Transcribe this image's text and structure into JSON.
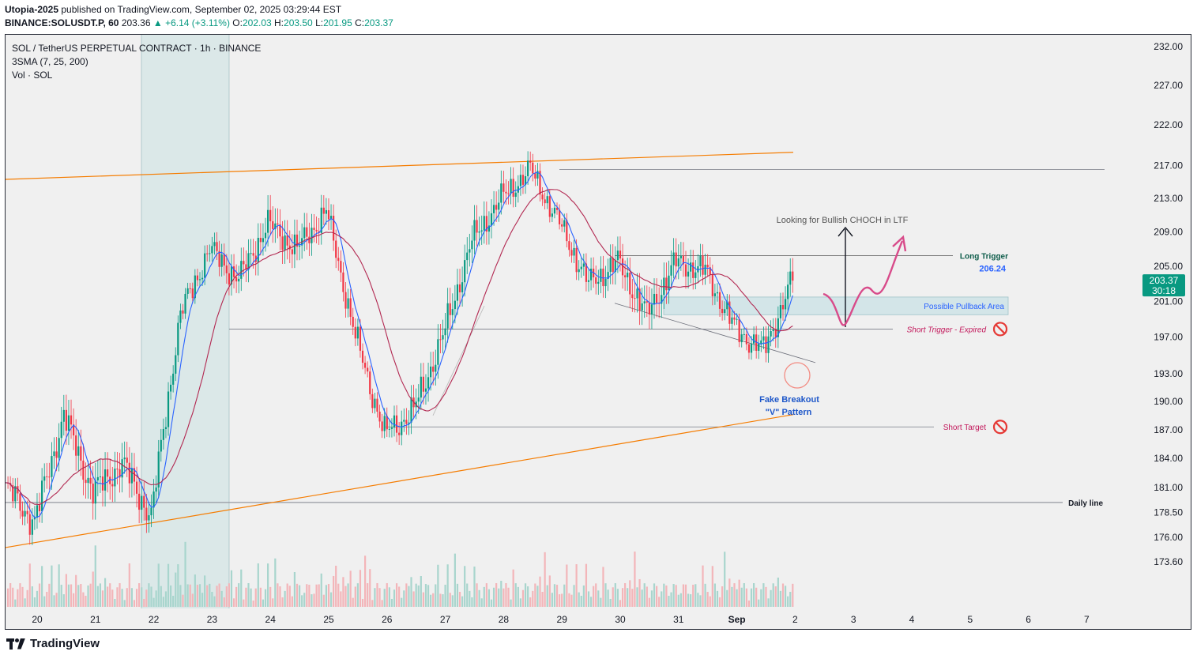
{
  "header": {
    "publisher": "Utopia-2025",
    "published_text": "published on TradingView.com, September 02, 2025 03:29:44 EST",
    "symbol": "BINANCE:SOLUSDT.P, 60",
    "price": "203.36",
    "change": "+6.14 (+3.11%)",
    "o_label": "O:",
    "o": "202.03",
    "h_label": "H:",
    "h": "203.50",
    "l_label": "L:",
    "l": "201.95",
    "c_label": "C:",
    "c": "203.37"
  },
  "legend": {
    "title": "SOL / TetherUS PERPETUAL CONTRACT · 1h · BINANCE",
    "indicator": "3SMA (7, 25, 200)",
    "volume": "Vol · SOL"
  },
  "footer": {
    "brand": "TradingView"
  },
  "colors": {
    "up": "#089981",
    "down": "#f23645",
    "sma_fast": "#2962ff",
    "sma_mid": "#b22851",
    "trendline": "#f57c00",
    "annotation_pink": "#d84b8a",
    "zone": "#d3e5e8",
    "highlight": "#dbe8e8"
  },
  "chart_data": {
    "type": "candlestick",
    "title": "SOL / TetherUS PERPETUAL CONTRACT · 1h · BINANCE",
    "y_ticks": [
      "232.00",
      "227.00",
      "222.00",
      "217.00",
      "213.00",
      "209.00",
      "205.00",
      "201.00",
      "197.00",
      "193.00",
      "190.00",
      "187.00",
      "184.00",
      "181.00",
      "178.50",
      "176.00",
      "173.60"
    ],
    "x_ticks": [
      "20",
      "21",
      "22",
      "23",
      "24",
      "25",
      "26",
      "27",
      "28",
      "29",
      "30",
      "31",
      "Sep",
      "2",
      "3",
      "4",
      "5",
      "6",
      "7"
    ],
    "ylim": [
      173.6,
      232.0
    ],
    "y_scale": "log",
    "current_price": "203.37",
    "countdown": "30:18",
    "price_path_keypoints": [
      {
        "day": "20",
        "price": 181.0
      },
      {
        "day": "20",
        "price": 177.5
      },
      {
        "day": "21",
        "price": 188.5
      },
      {
        "day": "22",
        "price": 180.5
      },
      {
        "day": "22",
        "price": 183.5
      },
      {
        "day": "22",
        "price": 178.0
      },
      {
        "day": "23",
        "price": 199.5
      },
      {
        "day": "23",
        "price": 207.0
      },
      {
        "day": "24",
        "price": 203.5
      },
      {
        "day": "24",
        "price": 210.0
      },
      {
        "day": "25",
        "price": 207.0
      },
      {
        "day": "25",
        "price": 211.5
      },
      {
        "day": "26",
        "price": 197.0
      },
      {
        "day": "26",
        "price": 186.5
      },
      {
        "day": "27",
        "price": 189.0
      },
      {
        "day": "27",
        "price": 197.0
      },
      {
        "day": "28",
        "price": 208.0
      },
      {
        "day": "28",
        "price": 213.0
      },
      {
        "day": "29",
        "price": 216.5
      },
      {
        "day": "29",
        "price": 210.0
      },
      {
        "day": "30",
        "price": 203.0
      },
      {
        "day": "30",
        "price": 205.5
      },
      {
        "day": "31",
        "price": 199.5
      },
      {
        "day": "31",
        "price": 205.5
      },
      {
        "day": "Sep",
        "price": 204.5
      },
      {
        "day": "Sep",
        "price": 198.0
      },
      {
        "day": "2",
        "price": 195.5
      },
      {
        "day": "2",
        "price": 203.37
      }
    ],
    "horizontal_levels": [
      {
        "price": 216.5
      },
      {
        "label": "Long Trigger",
        "value_label": "206.24",
        "price": 206.24
      },
      {
        "label": "Short Trigger - Expired",
        "price": 197.9
      },
      {
        "label": "Short Target",
        "price": 187.3
      },
      {
        "label": "Daily line",
        "price": 179.5
      }
    ],
    "zone": {
      "label": "Possible Pullback Area",
      "low": 199.5,
      "high": 201.5
    },
    "annotations": [
      "Looking for Bullish CHOCH in LTF",
      "Fake Breakout",
      "\"V\" Pattern"
    ]
  }
}
